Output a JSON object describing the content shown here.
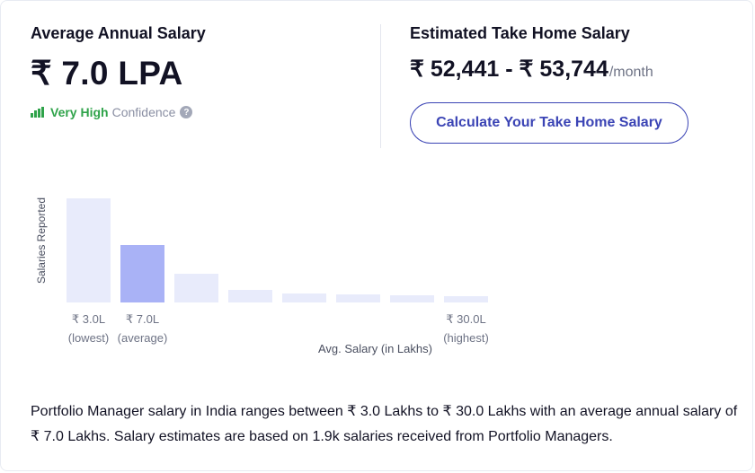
{
  "average": {
    "title": "Average Annual Salary",
    "value": "₹ 7.0 LPA",
    "confidence_strong": "Very High",
    "confidence_rest": "Confidence",
    "help_glyph": "?"
  },
  "take_home": {
    "title": "Estimated Take Home Salary",
    "range": "₹ 52,441 - ₹ 53,744",
    "unit": "/month",
    "button_label": "Calculate Your Take Home Salary"
  },
  "chart_data": {
    "type": "bar",
    "ylabel": "Salaries Reported",
    "xlabel": "Avg. Salary (in Lakhs)",
    "values": [
      100,
      55,
      28,
      12,
      9,
      8,
      7,
      6
    ],
    "highlight_index": 1,
    "tick_labels": [
      {
        "index": 0,
        "value": "₹ 3.0L",
        "note": "(lowest)"
      },
      {
        "index": 1,
        "value": "₹ 7.0L",
        "note": "(average)"
      },
      {
        "index": 7,
        "value": "₹ 30.0L",
        "note": "(highest)"
      }
    ],
    "colors": {
      "bar": "#e8ebfb",
      "highlight": "#a9b2f6"
    }
  },
  "description": "Portfolio Manager salary in India ranges between ₹ 3.0 Lakhs to ₹ 30.0 Lakhs with an average annual salary of ₹ 7.0 Lakhs. Salary estimates are based on 1.9k salaries received from Portfolio Managers."
}
